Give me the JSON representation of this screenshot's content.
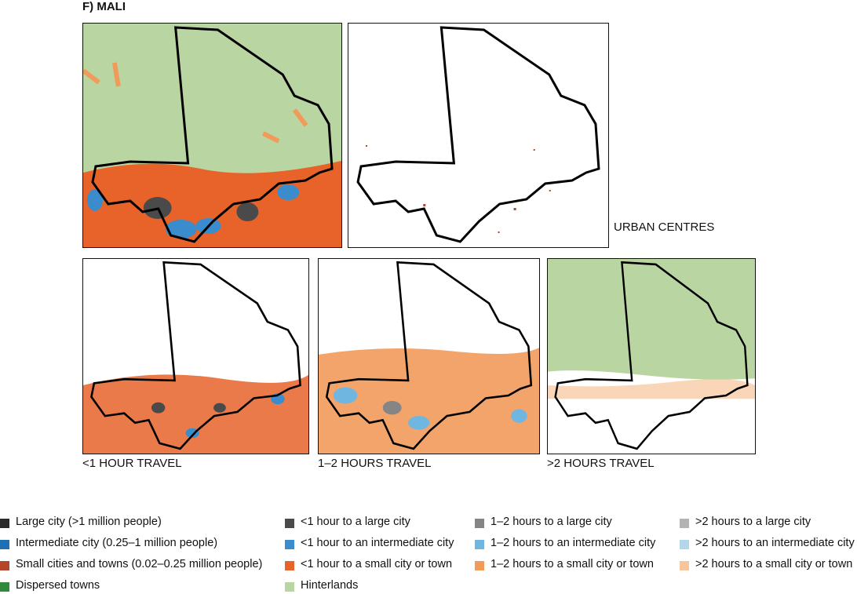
{
  "title": "F) MALI",
  "panels": [
    {
      "label": "URBAN CENTRES"
    },
    {
      "label": "<1 HOUR TRAVEL"
    },
    {
      "label": "1–2 HOURS TRAVEL"
    },
    {
      "label": ">2 HOURS TRAVEL"
    }
  ],
  "legend": [
    [
      {
        "label": "Large city (>1 million people)",
        "color": "#2b2b2b"
      },
      {
        "label": "Intermediate city (0.25–1 million people)",
        "color": "#1f6fb4"
      },
      {
        "label": "Small cities and towns (0.02–0.25 million people)",
        "color": "#b5452a"
      },
      {
        "label": "Dispersed towns",
        "color": "#2f8a3a"
      }
    ],
    [
      {
        "label": "<1 hour to a large city",
        "color": "#4a4a4a"
      },
      {
        "label": "<1 hour to an intermediate city",
        "color": "#3a8ccc"
      },
      {
        "label": "<1 hour to a small city or town",
        "color": "#e8632a"
      },
      {
        "label": "Hinterlands",
        "color": "#b9d5a2"
      }
    ],
    [
      {
        "label": "1–2 hours to a large city",
        "color": "#858585"
      },
      {
        "label": "1–2 hours to an intermediate city",
        "color": "#6fb6e0"
      },
      {
        "label": "1–2 hours to a small city or town",
        "color": "#f19a5a"
      }
    ],
    [
      {
        "label": ">2 hours to a large city",
        "color": "#b3b3b3"
      },
      {
        "label": ">2 hours to an intermediate city",
        "color": "#b2d6ea"
      },
      {
        "label": ">2 hours to a small city or town",
        "color": "#f7c59a"
      }
    ]
  ]
}
